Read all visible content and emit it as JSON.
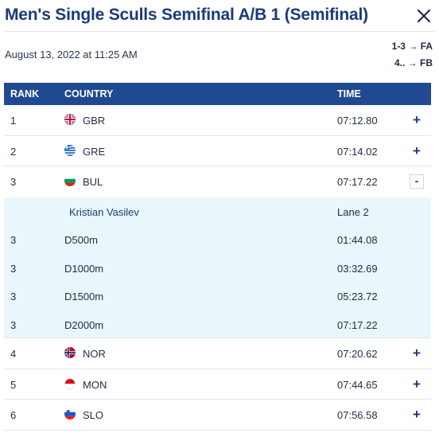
{
  "header": {
    "title": "Men's Single Sculls Semifinal A/B 1 (Semifinal)",
    "date": "August 13, 2022 at 11:25 AM",
    "progression": [
      "1-3 → FA",
      "4.. → FB"
    ]
  },
  "table": {
    "columns": {
      "rank": "RANK",
      "country": "COUNTRY",
      "time": "TIME"
    },
    "rows": [
      {
        "rank": "1",
        "country": "GBR",
        "time": "07:12.80",
        "toggle": "+"
      },
      {
        "rank": "2",
        "country": "GRE",
        "time": "07:14.02",
        "toggle": "+"
      },
      {
        "rank": "3",
        "country": "BUL",
        "time": "07:17.22",
        "toggle": "-"
      }
    ],
    "expanded": {
      "athlete": "Kristian Vasilev",
      "lane": "Lane 2",
      "splits": [
        {
          "rank": "3",
          "distance": "D500m",
          "time": "01:44.08"
        },
        {
          "rank": "3",
          "distance": "D1000m",
          "time": "03:32.69"
        },
        {
          "rank": "3",
          "distance": "D1500m",
          "time": "05:23.72"
        },
        {
          "rank": "3",
          "distance": "D2000m",
          "time": "07:17.22"
        }
      ]
    },
    "rows_after": [
      {
        "rank": "4",
        "country": "NOR",
        "time": "07:20.62",
        "toggle": "+"
      },
      {
        "rank": "5",
        "country": "MON",
        "time": "07:44.65",
        "toggle": "+"
      },
      {
        "rank": "6",
        "country": "SLO",
        "time": "07:56.58",
        "toggle": "+"
      }
    ]
  },
  "colors": {
    "title": "#1c3a78",
    "header_bg": "#1f4a91",
    "expanded_bg": "#e9f6fc"
  }
}
